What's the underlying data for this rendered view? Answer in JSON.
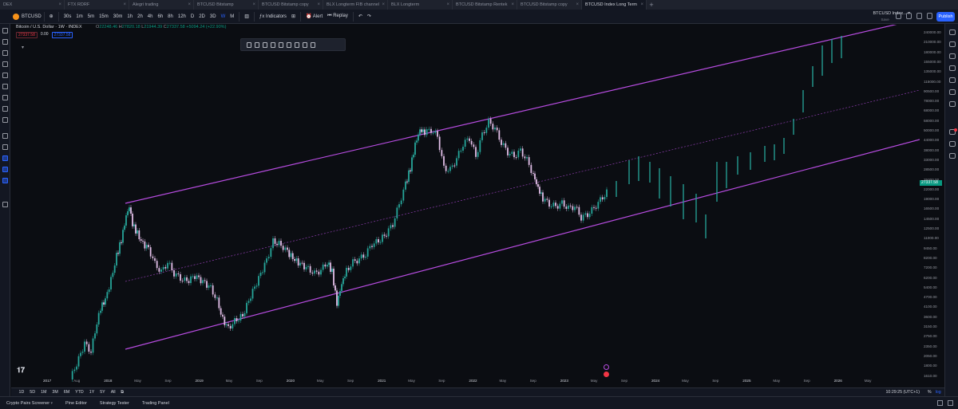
{
  "tabs": [
    {
      "label": "DEX",
      "active": false
    },
    {
      "label": "FTX RDRF",
      "active": false
    },
    {
      "label": "Alegri trading",
      "active": false
    },
    {
      "label": "BTCUSD Bitstamp",
      "active": false
    },
    {
      "label": "BTCUSD Bitstamp copy",
      "active": false
    },
    {
      "label": "BLX Longterm FIB channel",
      "active": false
    },
    {
      "label": "BLX Longterm",
      "active": false
    },
    {
      "label": "BTCUSD Bitstamp Rentek",
      "active": false
    },
    {
      "label": "BTCUSD Bitstamp copy",
      "active": false
    },
    {
      "label": "BTCUSD Index Long Term",
      "active": true
    }
  ],
  "toolbar": {
    "symbol": "BTCUSD",
    "intervals": [
      "30s",
      "1m",
      "5m",
      "15m",
      "30m",
      "1h",
      "2h",
      "4h",
      "6h",
      "8h",
      "12h",
      "D",
      "2D",
      "3D",
      "W",
      "M"
    ],
    "active_interval": "W",
    "indicators_label": "Indicators",
    "alert_label": "Alert",
    "replay_label": "Replay",
    "publish_label": "Publish",
    "right_symbol": "BTCUSD Index...",
    "right_symbol_sub": "Save"
  },
  "legend": {
    "title": "Bitcoin / U.S. Dollar · 1W · INDEX",
    "open_label": "O",
    "open": "22248.46",
    "high_label": "H",
    "high": "27820.18",
    "low_label": "L",
    "low": "21944.39",
    "close_label": "C",
    "close": "27337.58",
    "change": "+5094.24 (+22.90%)",
    "sell_price": "27337.58",
    "spread": "0.00",
    "buy_price": "27337.58"
  },
  "price_axis": {
    "labels": [
      "240000.00",
      "210000.00",
      "180000.00",
      "155000.00",
      "135000.00",
      "115000.00",
      "90500.00",
      "78000.00",
      "68000.00",
      "58000.00",
      "50000.00",
      "44000.00",
      "38000.00",
      "33000.00",
      "28500.00",
      "25000.00",
      "22000.00",
      "19000.00",
      "16500.00",
      "14500.00",
      "12500.00",
      "11000.00",
      "9450.00",
      "8200.00",
      "7200.00",
      "6200.00",
      "5400.00",
      "4700.00",
      "4100.00",
      "3600.00",
      "3150.00",
      "2750.00",
      "2350.00",
      "2050.00",
      "1800.00",
      "1610.00"
    ],
    "current_price": "27337.58",
    "current_color": "#089981"
  },
  "time_axis": {
    "labels": [
      {
        "text": "2017",
        "year": true
      },
      {
        "text": "Aug",
        "year": false
      },
      {
        "text": "2018",
        "year": true
      },
      {
        "text": "May",
        "year": false
      },
      {
        "text": "Sep",
        "year": false
      },
      {
        "text": "2019",
        "year": true
      },
      {
        "text": "May",
        "year": false
      },
      {
        "text": "Sep",
        "year": false
      },
      {
        "text": "2020",
        "year": true
      },
      {
        "text": "May",
        "year": false
      },
      {
        "text": "Sep",
        "year": false
      },
      {
        "text": "2021",
        "year": true
      },
      {
        "text": "May",
        "year": false
      },
      {
        "text": "Sep",
        "year": false
      },
      {
        "text": "2022",
        "year": true
      },
      {
        "text": "May",
        "year": false
      },
      {
        "text": "Sep",
        "year": false
      },
      {
        "text": "2023",
        "year": true
      },
      {
        "text": "May",
        "year": false
      },
      {
        "text": "Sep",
        "year": false
      },
      {
        "text": "2024",
        "year": true
      },
      {
        "text": "May",
        "year": false
      },
      {
        "text": "Sep",
        "year": false
      },
      {
        "text": "2025",
        "year": true
      },
      {
        "text": "May",
        "year": false
      },
      {
        "text": "Sep",
        "year": false
      },
      {
        "text": "2026",
        "year": true
      },
      {
        "text": "May",
        "year": false
      }
    ]
  },
  "ranges": [
    "1D",
    "5D",
    "1M",
    "3M",
    "6M",
    "YTD",
    "1Y",
    "5Y",
    "All"
  ],
  "clock": "10:29:25 (UTC+1)",
  "scale_options": {
    "percent": "%",
    "log": "log",
    "auto": "auto",
    "active": "log"
  },
  "panel_tabs": [
    "Crypto Pairs Screener",
    "Pine Editor",
    "Strategy Tester",
    "Trading Panel"
  ],
  "colors": {
    "up": "#26a69a",
    "down": "#e1bee7",
    "channel": "#b74ce0",
    "accent": "#2962ff",
    "background": "#0b0d12"
  },
  "icons": {
    "symbol": "bitcoin-icon",
    "left_tools": [
      "crosshair-icon",
      "trend-line-icon",
      "fib-icon",
      "brush-icon",
      "text-icon",
      "pattern-icon",
      "prediction-icon",
      "ruler-icon",
      "heart-icon",
      "measure-icon",
      "zoom-icon",
      "magnet-icon",
      "lock-icon",
      "eye-icon",
      "trash-icon"
    ],
    "right_bar": [
      "watchlist-icon",
      "alerts-icon",
      "data-window-icon",
      "calendar-icon",
      "ideas-icon",
      "chat-icon",
      "hotlist-icon",
      "notifications-icon",
      "streams-icon",
      "help-icon"
    ]
  }
}
